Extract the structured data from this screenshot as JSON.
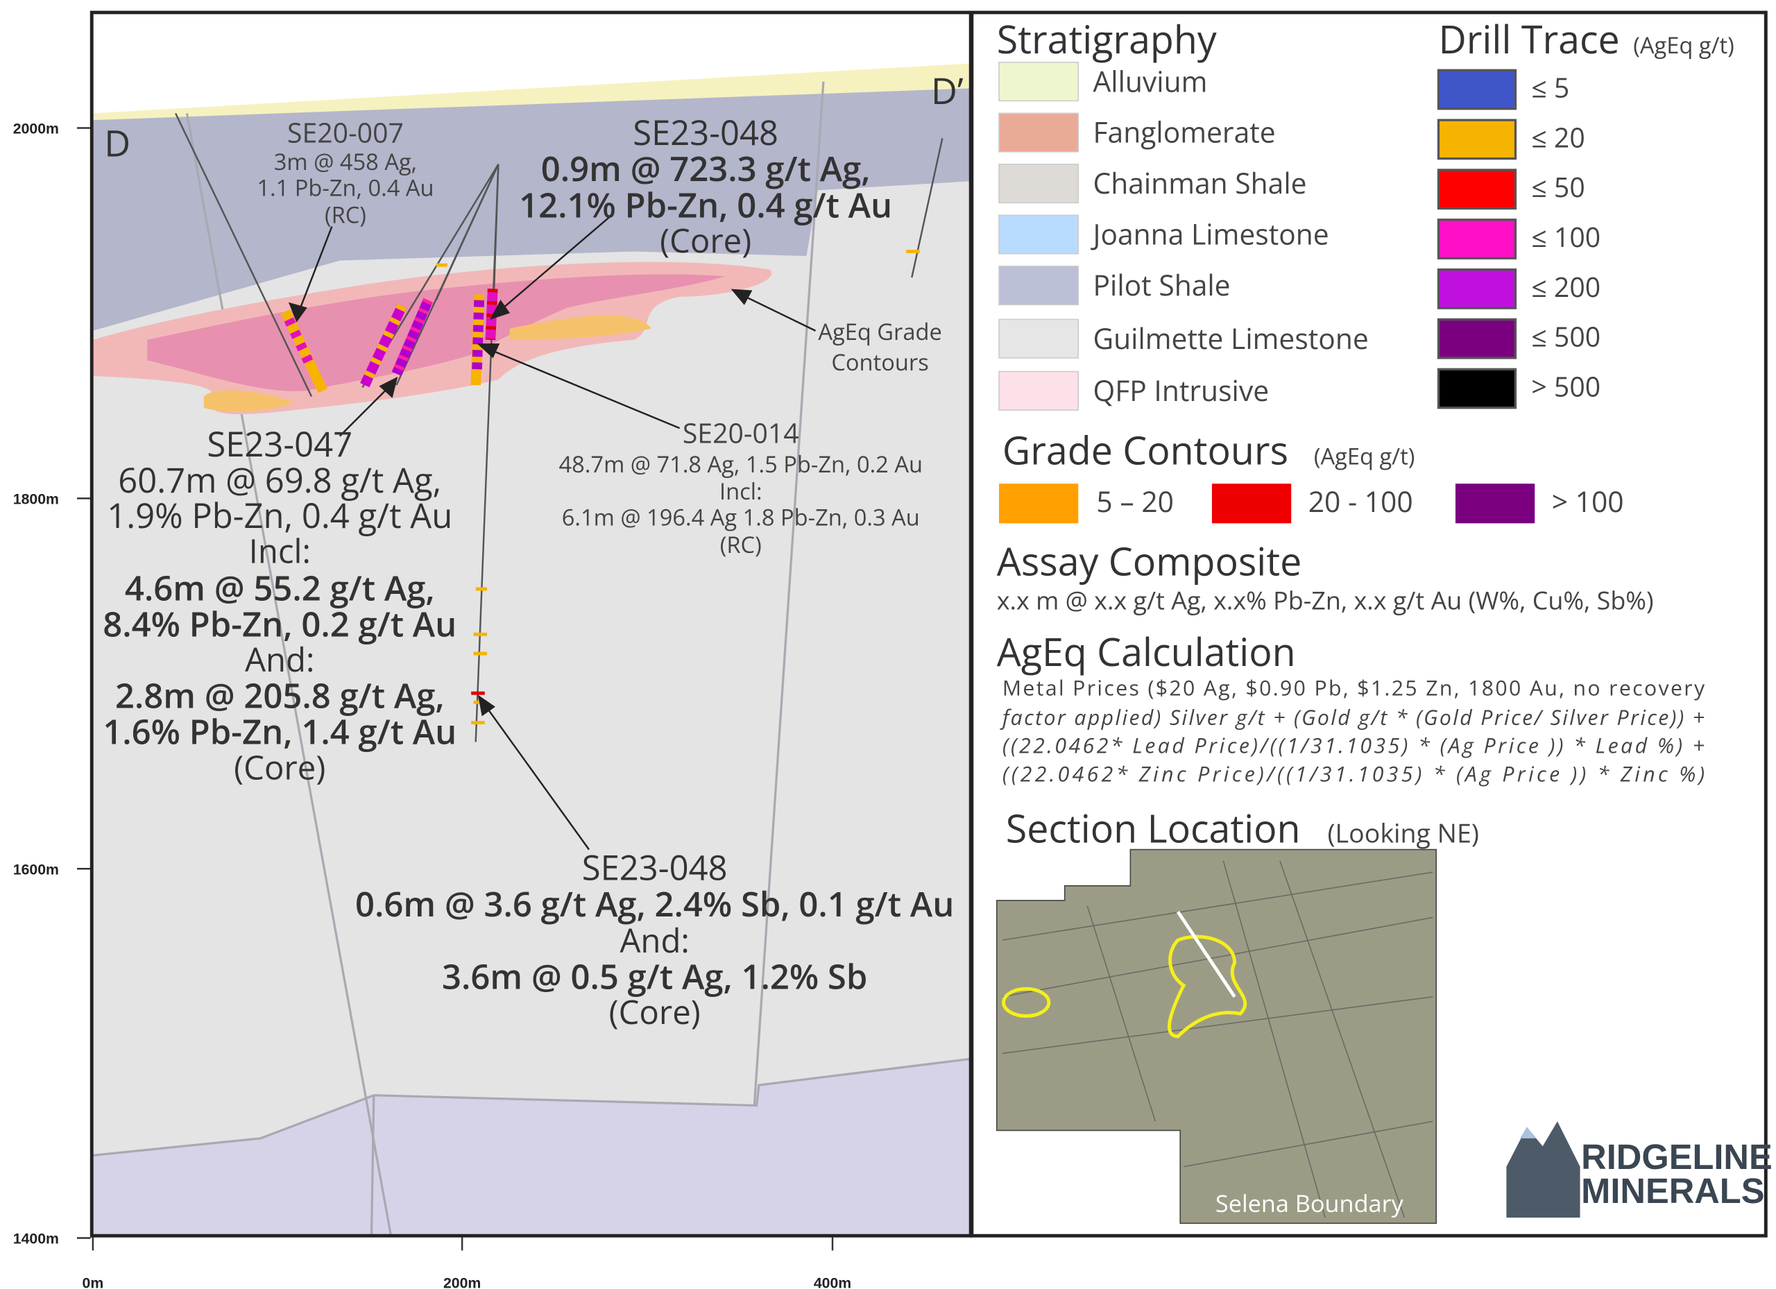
{
  "axes": {
    "y_labels": [
      "2000m",
      "1800m",
      "1600m",
      "1400m"
    ],
    "x_labels": [
      "0m",
      "200m",
      "400m"
    ]
  },
  "section": {
    "left_label": "D",
    "right_label": "D’",
    "annotations": [
      {
        "lines": [
          "SE20-007",
          "3m @ 458 Ag,",
          "1.1 Pb-Zn, 0.4 Au",
          "(RC)"
        ]
      },
      {
        "lines": [
          "SE23-048",
          "0.9m @ 723.3 g/t Ag,",
          "12.1% Pb-Zn, 0.4 g/t Au",
          "(Core)"
        ]
      },
      {
        "lines": [
          "SE23-047",
          "60.7m @ 69.8 g/t Ag,",
          "1.9% Pb-Zn, 0.4 g/t Au",
          "Incl:",
          "4.6m @ 55.2 g/t Ag,",
          "8.4% Pb-Zn, 0.2 g/t Au",
          "And:",
          "2.8m @ 205.8 g/t Ag,",
          "1.6% Pb-Zn, 1.4 g/t Au",
          "(Core)"
        ]
      },
      {
        "lines": [
          "SE20-014",
          "48.7m @ 71.8 Ag, 1.5 Pb-Zn, 0.2 Au",
          "Incl:",
          "6.1m @ 196.4 Ag 1.8 Pb-Zn, 0.3 Au",
          "(RC)"
        ]
      },
      {
        "lines": [
          "AgEq Grade",
          "Contours"
        ]
      },
      {
        "lines": [
          "SE23-048",
          "0.6m @ 3.6 g/t Ag, 2.4% Sb, 0.1 g/t Au",
          "And:",
          "3.6m @ 0.5 g/t Ag, 1.2% Sb",
          "(Core)"
        ]
      }
    ]
  },
  "legend": {
    "stratigraphy": {
      "title": "Stratigraphy",
      "items": [
        "Alluvium",
        "Fanglomerate",
        "Chainman Shale",
        "Joanna Limestone",
        "Pilot Shale",
        "Guilmette Limestone",
        "QFP Intrusive"
      ]
    },
    "drill_trace": {
      "title": "Drill Trace",
      "unit": "(AgEq g/t)",
      "items": [
        "≤ 5",
        "≤ 20",
        "≤ 50",
        "≤ 100",
        "≤ 200",
        "≤ 500",
        "> 500"
      ]
    },
    "grade_contours": {
      "title": "Grade Contours",
      "unit": "(AgEq g/t)",
      "items": [
        "5 – 20",
        "20 - 100",
        "> 100"
      ]
    },
    "assay_composite": {
      "title": "Assay Composite",
      "text": "x.x m @ x.x g/t Ag, x.x% Pb-Zn, x.x g/t Au (W%, Cu%, Sb%)"
    },
    "ageq_calculation": {
      "title": "AgEq Calculation",
      "lines": [
        "Metal Prices ($20 Ag, $0.90 Pb, $1.25 Zn, 1800 Au, no recovery",
        "factor applied) Silver g/t + (Gold g/t * (Gold Price/ Silver Price)) +",
        "((22.0462* Lead Price)/((1/31.1035) * (Ag Price )) * Lead %) +",
        "((22.0462* Zinc Price)/((1/31.1035) * (Ag Price )) * Zinc %)"
      ]
    },
    "section_location": {
      "title": "Section Location",
      "subtitle": "(Looking NE)",
      "map_label": "Selena Boundary"
    }
  },
  "logo": {
    "line1": "RIDGELINE",
    "line2": "MINERALS"
  }
}
